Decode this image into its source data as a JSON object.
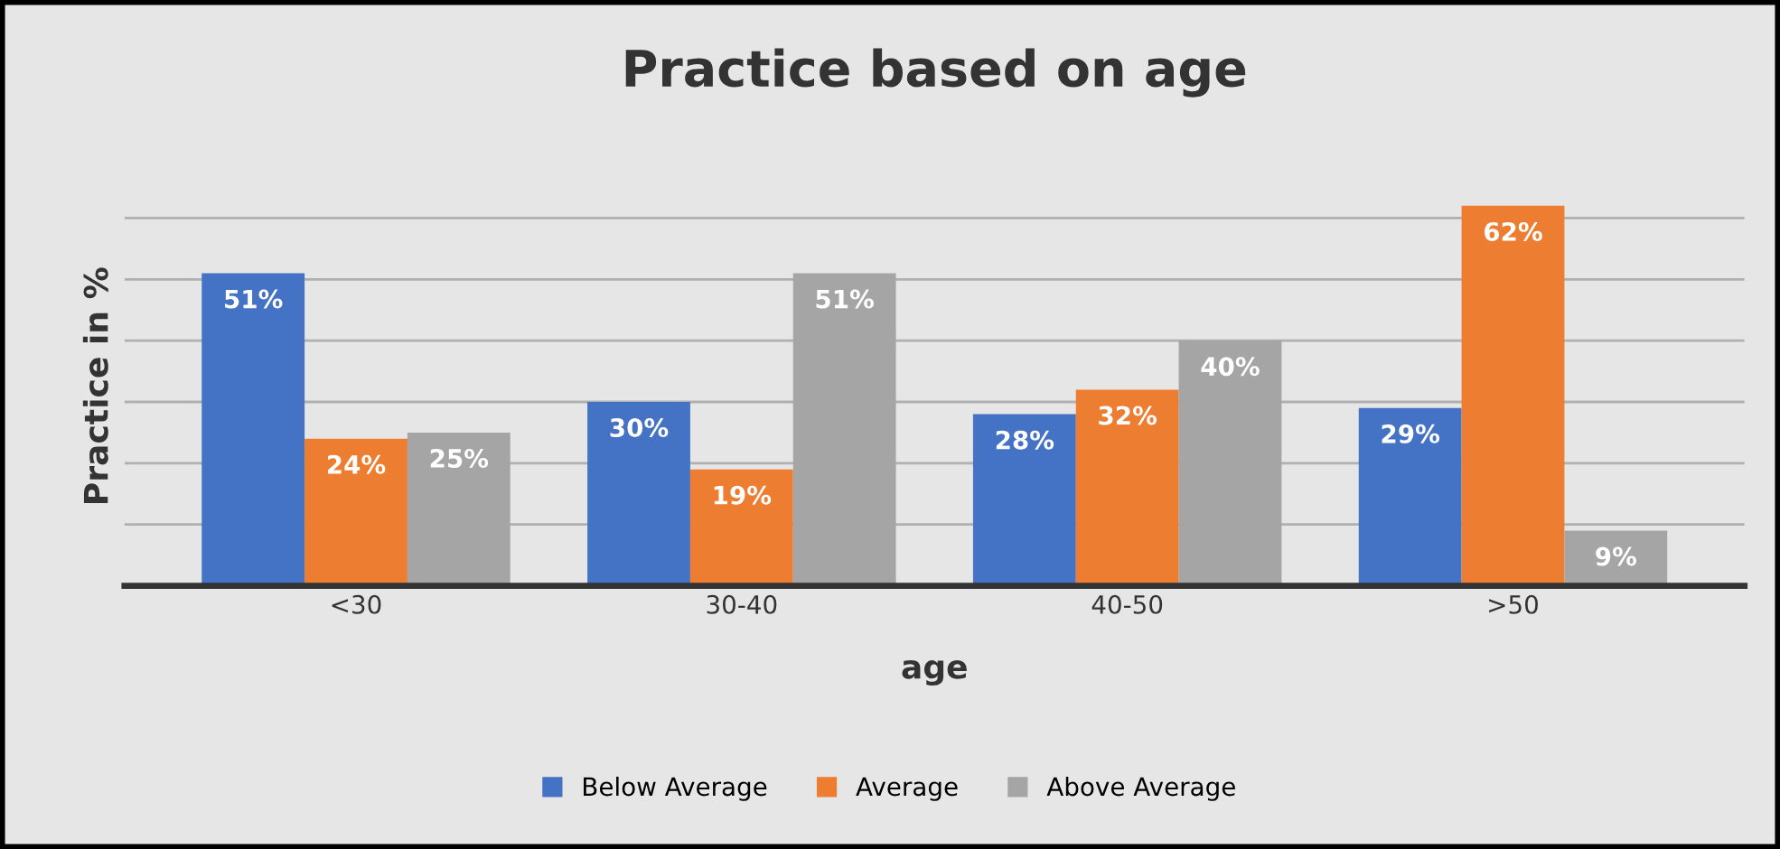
{
  "chart_data": {
    "type": "bar",
    "title": "Practice based on age",
    "xlabel": "age",
    "ylabel": "Practice in %",
    "categories": [
      "<30",
      "30-40",
      "40-50",
      ">50"
    ],
    "series": [
      {
        "name": "Below Average",
        "color": "#4472c4",
        "values": [
          51,
          30,
          28,
          29
        ],
        "value_labels": [
          "51%",
          "30%",
          "28%",
          "29%"
        ]
      },
      {
        "name": "Average",
        "color": "#ed7d31",
        "values": [
          24,
          19,
          32,
          62
        ],
        "value_labels": [
          "24%",
          "19%",
          "32%",
          "62%"
        ]
      },
      {
        "name": "Above Average",
        "color": "#a5a5a5",
        "values": [
          25,
          51,
          40,
          9
        ],
        "value_labels": [
          "25%",
          "51%",
          "40%",
          "9%"
        ]
      }
    ],
    "tick_labels": "x",
    "grid": "y",
    "legend": "bottom"
  }
}
